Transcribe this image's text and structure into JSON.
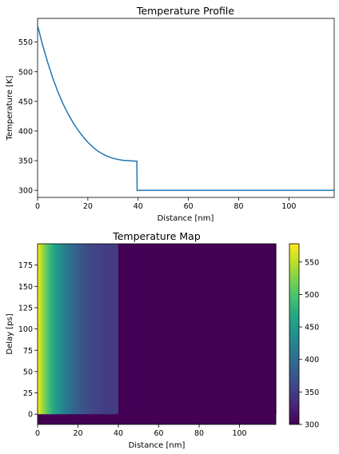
{
  "chart_data": [
    {
      "type": "line",
      "title": "Temperature Profile",
      "xlabel": "Distance [nm]",
      "ylabel": "Temperature [K]",
      "xlim": [
        0,
        118
      ],
      "ylim": [
        288,
        590
      ],
      "xticks": [
        0,
        20,
        40,
        60,
        80,
        100
      ],
      "yticks": [
        300,
        350,
        400,
        450,
        500,
        550
      ],
      "grid": false,
      "color": "#1f77b4",
      "series": [
        {
          "x": [
            0,
            2,
            4,
            6,
            8,
            10,
            12,
            14,
            16,
            18,
            20,
            22,
            24,
            26,
            28,
            30,
            32,
            34,
            36,
            38,
            39.5,
            39.6,
            40,
            60,
            80,
            100,
            118
          ],
          "y": [
            578,
            545,
            516,
            490,
            467,
            447,
            430,
            415,
            402,
            391,
            381,
            373,
            366,
            361,
            357,
            354,
            352,
            350.5,
            350,
            349.5,
            349,
            300,
            300,
            300,
            300,
            300,
            300
          ]
        }
      ]
    },
    {
      "type": "heatmap",
      "title": "Temperature Map",
      "xlabel": "Distance [nm]",
      "ylabel": "Delay [ps]",
      "xlim": [
        0,
        118
      ],
      "ylim": [
        -12,
        200
      ],
      "xticks": [
        0,
        20,
        40,
        60,
        80,
        100
      ],
      "yticks": [
        0,
        25,
        50,
        75,
        100,
        125,
        150,
        175
      ],
      "colormap": "viridis",
      "colorbar": {
        "min": 300,
        "max": 578,
        "ticks": [
          300,
          350,
          400,
          450,
          500,
          550
        ]
      },
      "data_region": {
        "delay_start": 0,
        "delay_end": 200
      },
      "background_value": 300,
      "profile_source": "same temperature profile along distance, constant over delay"
    }
  ]
}
